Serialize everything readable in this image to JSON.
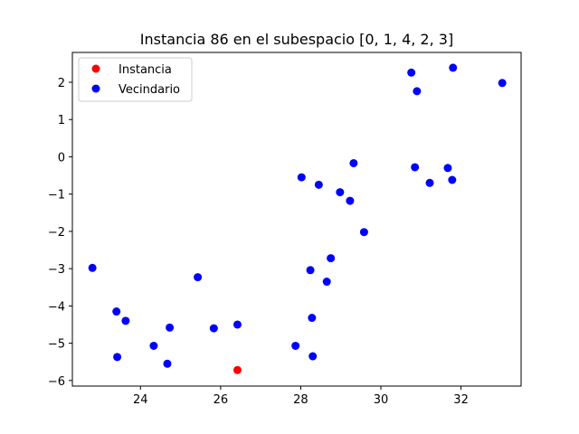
{
  "chart_data": {
    "type": "scatter",
    "title": "Instancia 86 en el subespacio [0, 1, 4, 2, 3]",
    "xlabel": "",
    "ylabel": "",
    "xlim": [
      22.3,
      33.5
    ],
    "ylim": [
      -6.15,
      2.8
    ],
    "xticks": [
      24,
      26,
      28,
      30,
      32
    ],
    "yticks": [
      -6,
      -5,
      -4,
      -3,
      -2,
      -1,
      0,
      1,
      2
    ],
    "grid": false,
    "legend_position": "top-left",
    "series": [
      {
        "name": "Instancia",
        "color": "#ff0000",
        "points": [
          [
            26.42,
            -5.72
          ]
        ]
      },
      {
        "name": "Vecindario",
        "color": "#0000ff",
        "points": [
          [
            22.8,
            -2.98
          ],
          [
            23.4,
            -4.15
          ],
          [
            23.42,
            -5.37
          ],
          [
            23.63,
            -4.4
          ],
          [
            24.33,
            -5.07
          ],
          [
            24.67,
            -5.55
          ],
          [
            24.73,
            -4.58
          ],
          [
            25.43,
            -3.23
          ],
          [
            25.83,
            -4.6
          ],
          [
            26.42,
            -4.5
          ],
          [
            27.87,
            -5.07
          ],
          [
            28.02,
            -0.55
          ],
          [
            28.24,
            -3.04
          ],
          [
            28.28,
            -4.32
          ],
          [
            28.3,
            -5.35
          ],
          [
            28.45,
            -0.75
          ],
          [
            28.65,
            -3.35
          ],
          [
            28.75,
            -2.72
          ],
          [
            28.98,
            -0.95
          ],
          [
            29.23,
            -1.18
          ],
          [
            29.32,
            -0.17
          ],
          [
            29.58,
            -2.02
          ],
          [
            30.76,
            2.26
          ],
          [
            30.85,
            -0.28
          ],
          [
            30.9,
            1.76
          ],
          [
            31.22,
            -0.7
          ],
          [
            31.67,
            -0.3
          ],
          [
            31.78,
            -0.62
          ],
          [
            31.8,
            2.39
          ],
          [
            33.03,
            1.98
          ]
        ]
      }
    ]
  }
}
